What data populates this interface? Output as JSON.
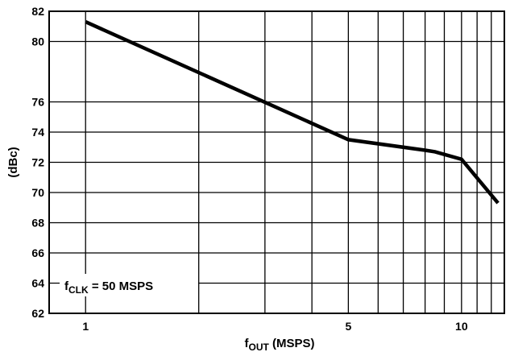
{
  "chart_data": {
    "type": "line",
    "xlabel": "f",
    "xlabel_sub": "OUT",
    "xlabel_suffix": " (MSPS)",
    "ylabel": "(dBc)",
    "x_scale": "log",
    "xlim": [
      0.8,
      13
    ],
    "ylim": [
      62,
      82
    ],
    "x_ticks": [
      {
        "value": 1,
        "label": "1"
      },
      {
        "value": 5,
        "label": "5"
      },
      {
        "value": 10,
        "label": "10"
      }
    ],
    "y_ticks": [
      {
        "value": 62,
        "label": "62"
      },
      {
        "value": 64,
        "label": "64"
      },
      {
        "value": 66,
        "label": "66"
      },
      {
        "value": 68,
        "label": "68"
      },
      {
        "value": 70,
        "label": "70"
      },
      {
        "value": 72,
        "label": "72"
      },
      {
        "value": 74,
        "label": "74"
      },
      {
        "value": 76,
        "label": "76"
      },
      {
        "value": 80,
        "label": "80"
      },
      {
        "value": 82,
        "label": "82"
      }
    ],
    "x_grid": [
      1,
      2,
      3,
      4,
      5,
      6,
      7,
      8,
      9,
      10,
      11,
      12
    ],
    "grid": true,
    "annotation": {
      "prefix": "f",
      "sub": "CLK",
      "suffix": " = 50 MSPS",
      "position": "bottom-left"
    },
    "series": [
      {
        "x": [
          1,
          5,
          8,
          8.5,
          10,
          12.5
        ],
        "y": [
          81.3,
          73.5,
          72.8,
          72.7,
          72.2,
          69.3
        ]
      }
    ]
  }
}
